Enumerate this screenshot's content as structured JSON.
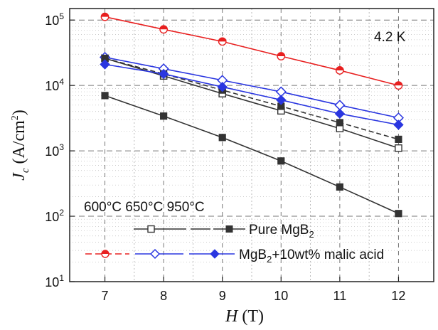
{
  "chart_data": {
    "type": "line",
    "title": "",
    "xlabel": {
      "main": "H",
      "unit": "(T)"
    },
    "ylabel": {
      "main": "J",
      "sub": "c",
      "unit_prefix": "(A/cm",
      "unit_sup": "2",
      "unit_suffix": ")"
    },
    "x": [
      7,
      8,
      9,
      10,
      11,
      12
    ],
    "x_tick_labels": [
      "7",
      "8",
      "9",
      "10",
      "11",
      "12"
    ],
    "xlim": [
      6.4,
      12.6
    ],
    "ylim": [
      10,
      150000
    ],
    "yscale": "log",
    "y_ticks": [
      {
        "value": 10,
        "base": "10",
        "exp": "1"
      },
      {
        "value": 100,
        "base": "10",
        "exp": "2"
      },
      {
        "value": 1000,
        "base": "10",
        "exp": "3"
      },
      {
        "value": 10000,
        "base": "10",
        "exp": "4"
      },
      {
        "value": 100000,
        "base": "10",
        "exp": "5"
      }
    ],
    "grid": true,
    "annotation": "4.2 K",
    "series": [
      {
        "id": "s950-malic",
        "color": "#e82020",
        "marker": "half-circle",
        "dashed": false,
        "values": [
          112000,
          72000,
          47000,
          28000,
          17000,
          10000
        ]
      },
      {
        "id": "s600-pure",
        "color": "#333333",
        "marker": "open-square",
        "dashed": false,
        "values": [
          26000,
          14000,
          7500,
          4100,
          2200,
          1100
        ]
      },
      {
        "id": "s650-malic",
        "color": "#2a36e0",
        "marker": "open-diamond",
        "dashed": false,
        "values": [
          27000,
          18000,
          12000,
          8000,
          5000,
          3200
        ]
      },
      {
        "id": "s650-pure",
        "color": "#333333",
        "marker": "filled-square",
        "dashed": true,
        "values": [
          26000,
          15000,
          8500,
          4800,
          2700,
          1500
        ]
      },
      {
        "id": "s950-pure",
        "color": "#333333",
        "marker": "filled-square",
        "dashed": false,
        "values": [
          7000,
          3400,
          1600,
          700,
          280,
          110
        ]
      },
      {
        "id": "s600-malic",
        "color": "#2a36e0",
        "marker": "filled-diamond",
        "dashed": false,
        "values": [
          21000,
          15000,
          9500,
          6000,
          3700,
          2500
        ]
      }
    ],
    "legend": {
      "placement": "bottom-left",
      "header": "600°C 650°C 950°C",
      "rows": [
        {
          "label_main": "Pure MgB",
          "label_sub": "2",
          "label_rest": "",
          "color": "#333333",
          "markers": [
            "open-square",
            "",
            "filled-square"
          ]
        },
        {
          "label_main": "MgB",
          "label_sub": "2",
          "label_rest": "+10wt% malic acid",
          "color_left": "#e82020",
          "colors": [
            "#e82020",
            "#2a36e0",
            "#2a36e0"
          ],
          "markers": [
            "half-circle",
            "open-diamond",
            "filled-diamond"
          ]
        }
      ]
    }
  }
}
